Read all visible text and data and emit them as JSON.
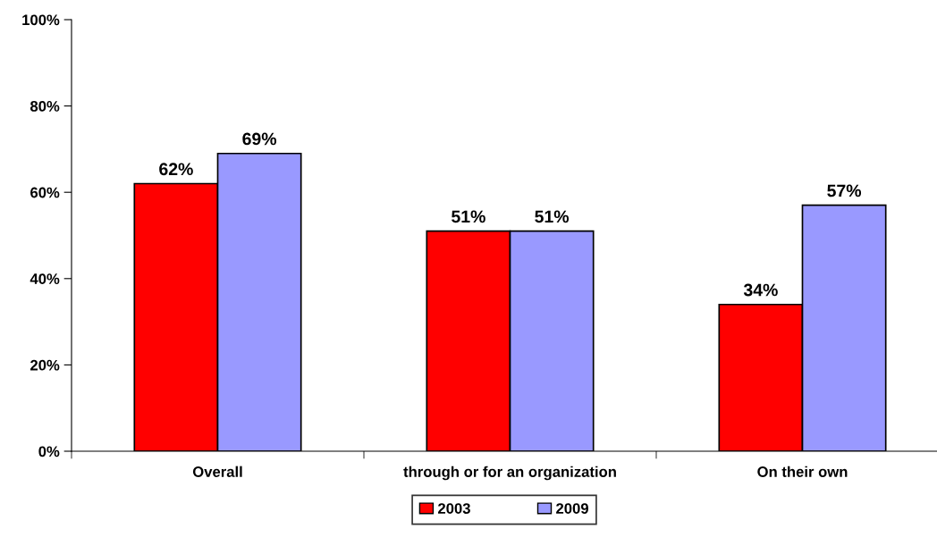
{
  "chart_data": {
    "type": "bar",
    "categories": [
      "Overall",
      "through or for an organization",
      "On their own"
    ],
    "series": [
      {
        "name": "2003",
        "color": "#ff0000",
        "values": [
          62,
          51,
          34
        ],
        "value_labels": [
          "62%",
          "51%",
          "34%"
        ]
      },
      {
        "name": "2009",
        "color": "#9999ff",
        "values": [
          69,
          51,
          57
        ],
        "value_labels": [
          "69%",
          "51%",
          "57%"
        ]
      }
    ],
    "ylim": [
      0,
      100
    ],
    "yticks": [
      {
        "value": 0,
        "label": "0%"
      },
      {
        "value": 20,
        "label": "20%"
      },
      {
        "value": 40,
        "label": "40%"
      },
      {
        "value": 60,
        "label": "60%"
      },
      {
        "value": 80,
        "label": "80%"
      },
      {
        "value": 100,
        "label": "100%"
      }
    ],
    "grid": false,
    "legend": "bottom"
  }
}
